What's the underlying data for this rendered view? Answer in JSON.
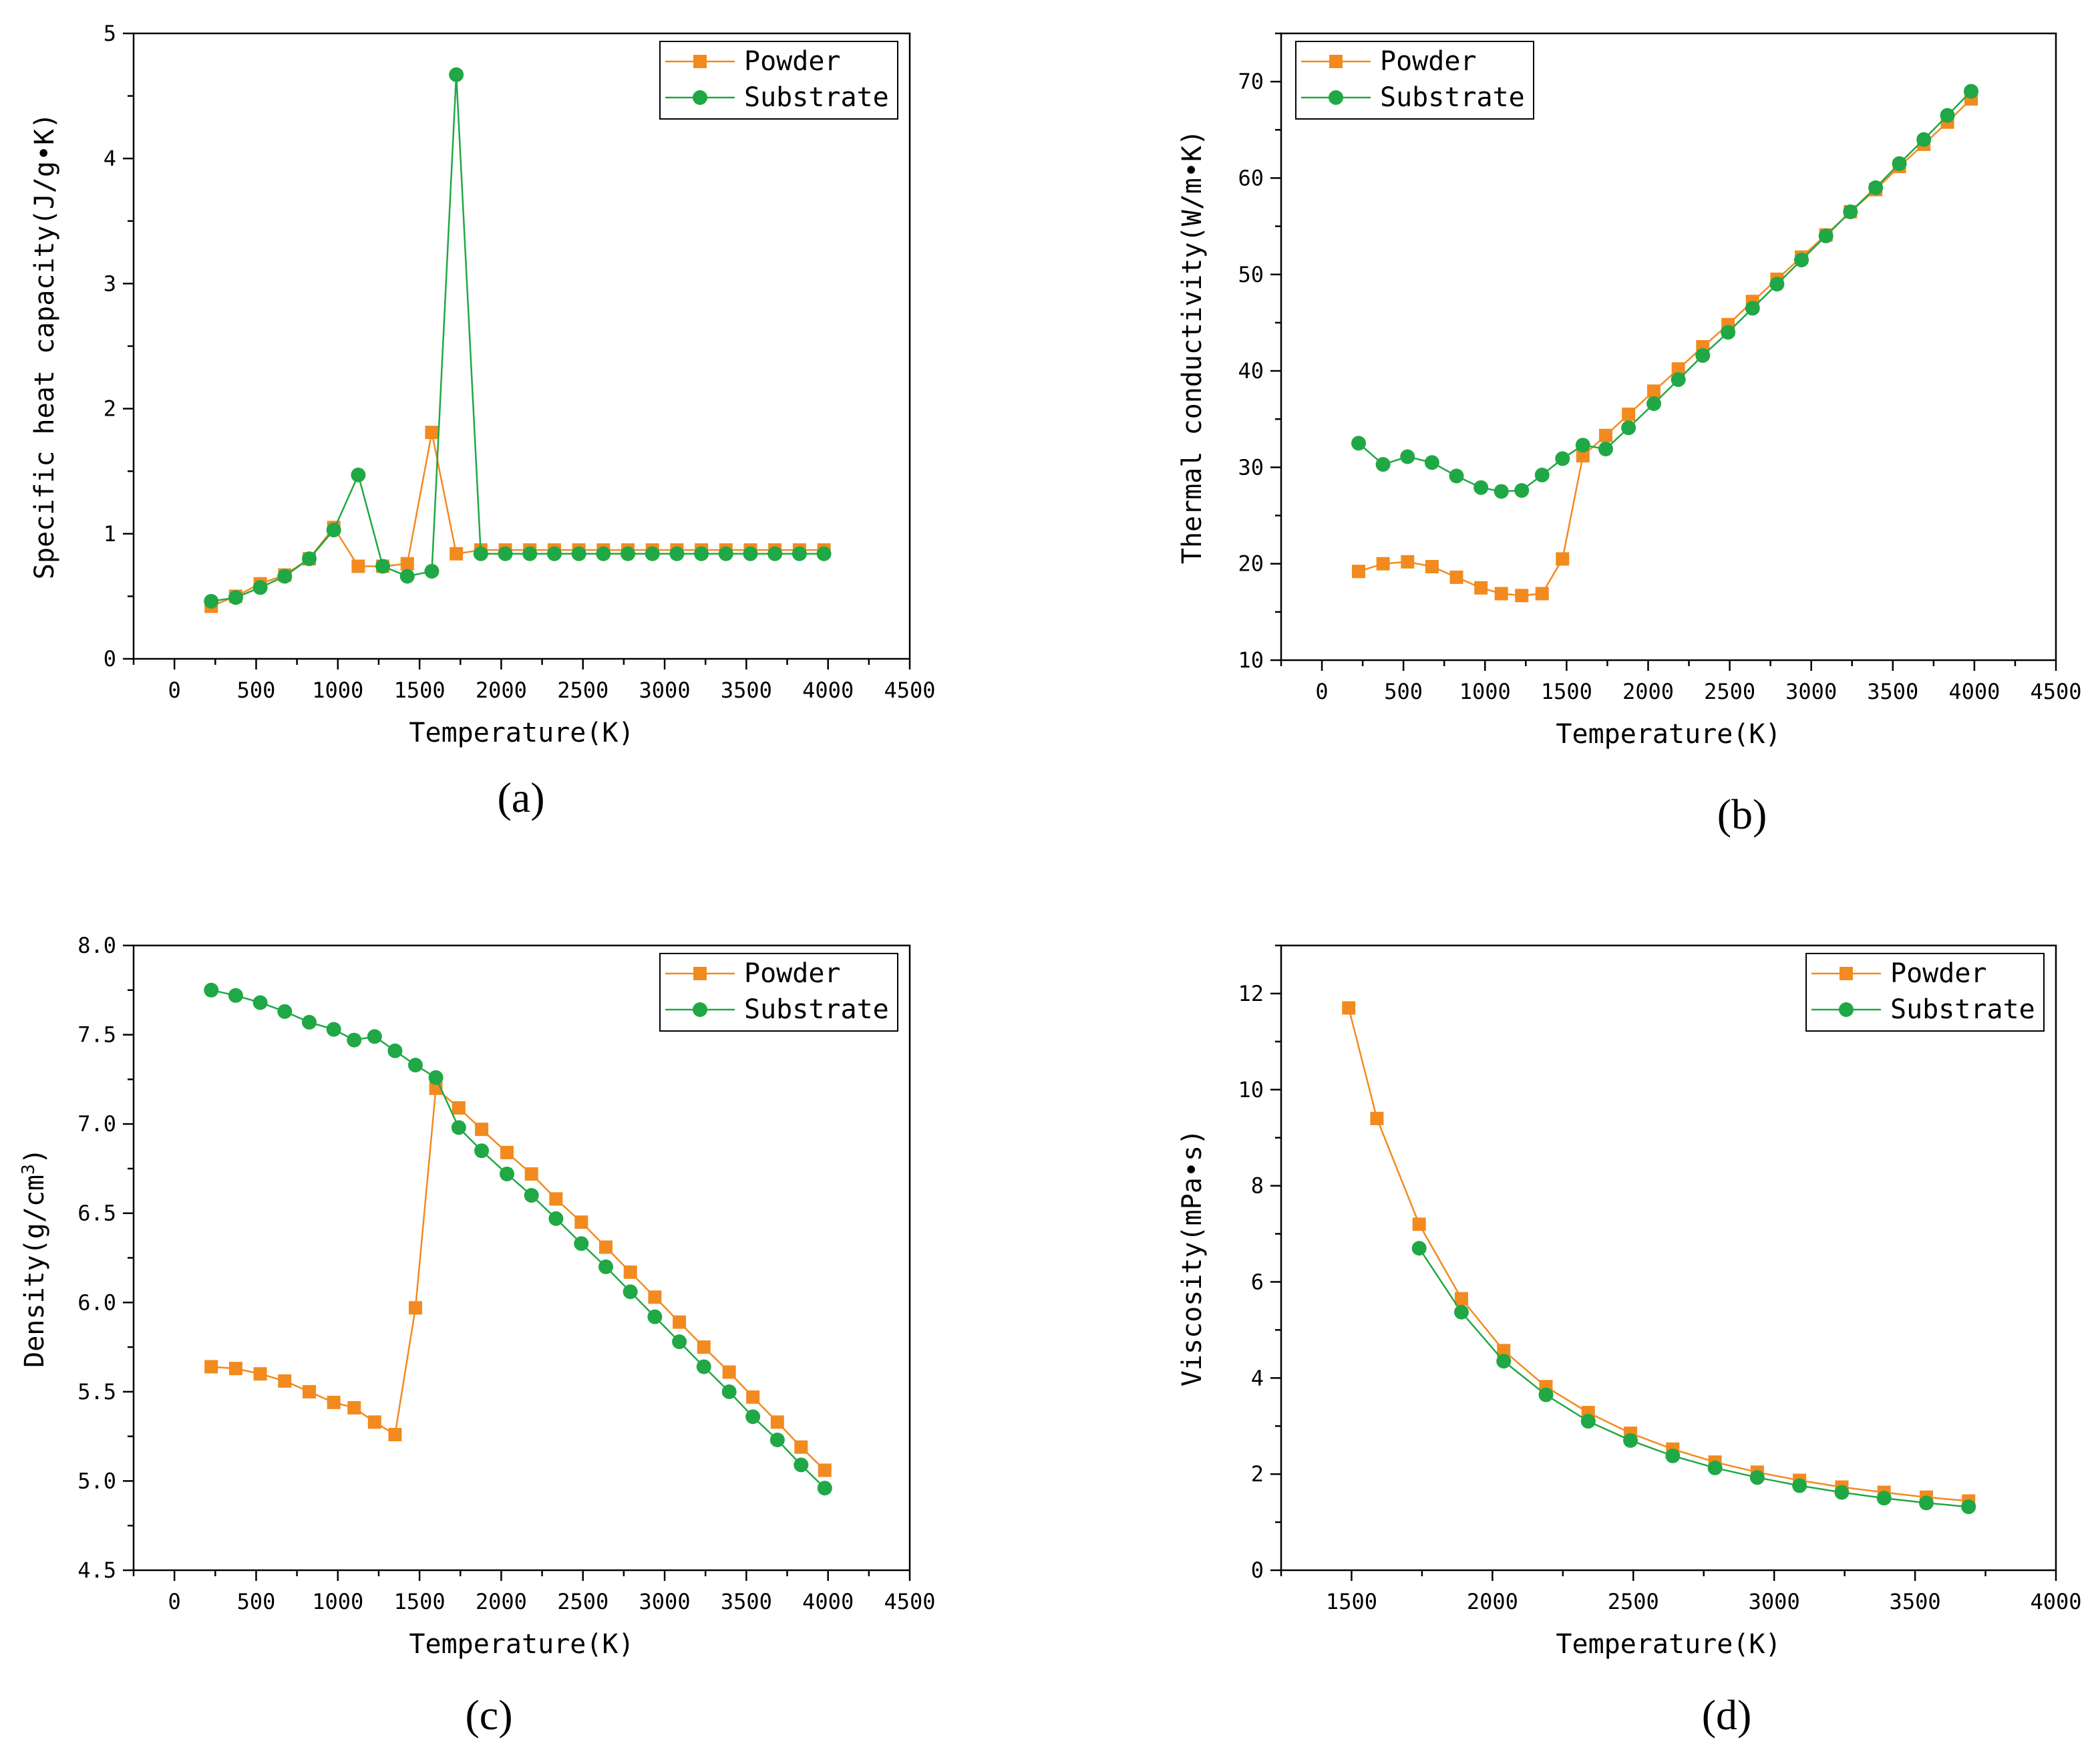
{
  "colors": {
    "powder": "#f28a1f",
    "substrate": "#1fa845",
    "axis": "#000000"
  },
  "panels": [
    {
      "caption": "(a)",
      "chart_data": {
        "type": "line",
        "title": "",
        "xlabel": "Temperature(K)",
        "ylabel": "Specific heat capacity(J/g•K)",
        "xlim": [
          -250,
          4500
        ],
        "ylim": [
          0,
          5
        ],
        "xticks": [
          0,
          500,
          1000,
          1500,
          2000,
          2500,
          3000,
          3500,
          4000,
          4500
        ],
        "xtick_labels": [
          "0",
          "500",
          "1000",
          "1500",
          "2000",
          "2500",
          "3000",
          "3500",
          "4000",
          "4500"
        ],
        "yticks": [
          0,
          1,
          2,
          3,
          4,
          5
        ],
        "ytick_labels": [
          "0",
          "1",
          "2",
          "3",
          "4",
          "5"
        ],
        "legend": "top-right",
        "series": [
          {
            "name": "Powder",
            "marker": "square",
            "x": [
              225,
              375,
              525,
              675,
              825,
              975,
              1125,
              1275,
              1425,
              1575,
              1725,
              1875,
              2025,
              2175,
              2325,
              2475,
              2625,
              2775,
              2925,
              3075,
              3225,
              3375,
              3525,
              3675,
              3825,
              3975
            ],
            "y": [
              0.42,
              0.5,
              0.6,
              0.67,
              0.8,
              1.05,
              0.74,
              0.74,
              0.76,
              1.81,
              0.84,
              0.87,
              0.87,
              0.87,
              0.87,
              0.87,
              0.87,
              0.87,
              0.87,
              0.87,
              0.87,
              0.87,
              0.87,
              0.87,
              0.87,
              0.87
            ]
          },
          {
            "name": "Substrate",
            "marker": "circle",
            "x": [
              225,
              375,
              525,
              675,
              825,
              975,
              1125,
              1275,
              1425,
              1575,
              1725,
              1875,
              2025,
              2175,
              2325,
              2475,
              2625,
              2775,
              2925,
              3075,
              3225,
              3375,
              3525,
              3675,
              3825,
              3975
            ],
            "y": [
              0.46,
              0.49,
              0.57,
              0.66,
              0.8,
              1.03,
              1.47,
              0.74,
              0.66,
              0.7,
              4.67,
              0.84,
              0.84,
              0.84,
              0.84,
              0.84,
              0.84,
              0.84,
              0.84,
              0.84,
              0.84,
              0.84,
              0.84,
              0.84,
              0.84,
              0.84
            ]
          }
        ]
      }
    },
    {
      "caption": "(b)",
      "chart_data": {
        "type": "line",
        "title": "",
        "xlabel": "Temperature(K)",
        "ylabel": "Thermal conductivity(W/m•K)",
        "xlim": [
          -250,
          4500
        ],
        "ylim": [
          10,
          75
        ],
        "xticks": [
          0,
          500,
          1000,
          1500,
          2000,
          2500,
          3000,
          3500,
          4000,
          4500
        ],
        "xtick_labels": [
          "0",
          "500",
          "1000",
          "1500",
          "2000",
          "2500",
          "3000",
          "3500",
          "4000",
          "4500"
        ],
        "yticks": [
          10,
          20,
          30,
          40,
          50,
          60,
          70
        ],
        "ytick_labels": [
          "10",
          "20",
          "30",
          "40",
          "50",
          "60",
          "70"
        ],
        "legend": "top-left",
        "series": [
          {
            "name": "Powder",
            "marker": "square",
            "x": [
              225,
              375,
              525,
              675,
              825,
              975,
              1100,
              1225,
              1350,
              1475,
              1600,
              1740,
              1880,
              2035,
              2185,
              2335,
              2490,
              2640,
              2790,
              2940,
              3090,
              3240,
              3395,
              3540,
              3690,
              3835,
              3980
            ],
            "y": [
              19.2,
              20.0,
              20.2,
              19.7,
              18.6,
              17.5,
              16.9,
              16.7,
              16.9,
              20.5,
              31.2,
              33.3,
              35.5,
              37.9,
              40.2,
              42.5,
              44.8,
              47.2,
              49.5,
              51.8,
              54.1,
              56.5,
              58.8,
              61.2,
              63.5,
              65.8,
              68.2
            ]
          },
          {
            "name": "Substrate",
            "marker": "circle",
            "x": [
              225,
              375,
              525,
              675,
              825,
              975,
              1100,
              1225,
              1350,
              1475,
              1600,
              1740,
              1880,
              2035,
              2185,
              2335,
              2490,
              2640,
              2790,
              2940,
              3090,
              3240,
              3395,
              3540,
              3690,
              3835,
              3980
            ],
            "y": [
              32.5,
              30.3,
              31.1,
              30.5,
              29.1,
              27.9,
              27.5,
              27.6,
              29.2,
              30.9,
              32.3,
              31.9,
              34.1,
              36.6,
              39.1,
              41.6,
              44.0,
              46.5,
              49.0,
              51.5,
              54.0,
              56.5,
              59.0,
              61.5,
              64.0,
              66.5,
              69.0
            ]
          }
        ]
      }
    },
    {
      "caption": "(c)",
      "chart_data": {
        "type": "line",
        "title": "",
        "xlabel": "Temperature(K)",
        "ylabel": "Density(g/cm",
        "ylabel_sup": "3",
        "ylabel_end": ")",
        "xlim": [
          -250,
          4500
        ],
        "ylim": [
          4.5,
          8.0
        ],
        "xticks": [
          0,
          500,
          1000,
          1500,
          2000,
          2500,
          3000,
          3500,
          4000,
          4500
        ],
        "xtick_labels": [
          "0",
          "500",
          "1000",
          "1500",
          "2000",
          "2500",
          "3000",
          "3500",
          "4000",
          "4500"
        ],
        "yticks": [
          4.5,
          5.0,
          5.5,
          6.0,
          6.5,
          7.0,
          7.5,
          8.0
        ],
        "ytick_labels": [
          "4.5",
          "5.0",
          "5.5",
          "6.0",
          "6.5",
          "7.0",
          "7.5",
          "8.0"
        ],
        "legend": "top-right",
        "series": [
          {
            "name": "Powder",
            "marker": "square",
            "x": [
              225,
              375,
              525,
              675,
              825,
              975,
              1100,
              1225,
              1350,
              1475,
              1600,
              1740,
              1880,
              2035,
              2185,
              2335,
              2490,
              2640,
              2790,
              2940,
              3090,
              3240,
              3395,
              3540,
              3690,
              3835,
              3980
            ],
            "y": [
              5.64,
              5.63,
              5.6,
              5.56,
              5.5,
              5.44,
              5.41,
              5.33,
              5.26,
              5.97,
              7.2,
              7.09,
              6.97,
              6.84,
              6.72,
              6.58,
              6.45,
              6.31,
              6.17,
              6.03,
              5.89,
              5.75,
              5.61,
              5.47,
              5.33,
              5.19,
              5.06
            ]
          },
          {
            "name": "Substrate",
            "marker": "circle",
            "x": [
              225,
              375,
              525,
              675,
              825,
              975,
              1100,
              1225,
              1350,
              1475,
              1600,
              1740,
              1880,
              2035,
              2185,
              2335,
              2490,
              2640,
              2790,
              2940,
              3090,
              3240,
              3395,
              3540,
              3690,
              3835,
              3980
            ],
            "y": [
              7.75,
              7.72,
              7.68,
              7.63,
              7.57,
              7.53,
              7.47,
              7.49,
              7.41,
              7.33,
              7.26,
              6.98,
              6.85,
              6.72,
              6.6,
              6.47,
              6.33,
              6.2,
              6.06,
              5.92,
              5.78,
              5.64,
              5.5,
              5.36,
              5.23,
              5.09,
              4.96
            ]
          }
        ]
      }
    },
    {
      "caption": "(d)",
      "chart_data": {
        "type": "line",
        "title": "",
        "xlabel": "Temperature(K)",
        "ylabel": "Viscosity(mPa•s)",
        "xlim": [
          1250,
          4000
        ],
        "ylim": [
          0,
          13
        ],
        "xticks": [
          1500,
          2000,
          2500,
          3000,
          3500,
          4000
        ],
        "xtick_labels": [
          "1500",
          "2000",
          "2500",
          "3000",
          "3500",
          "4000"
        ],
        "yticks": [
          0,
          2,
          4,
          6,
          8,
          10,
          12
        ],
        "ytick_labels": [
          "0",
          "2",
          "4",
          "6",
          "8",
          "10",
          "12"
        ],
        "legend": "top-right",
        "series": [
          {
            "name": "Powder",
            "marker": "square",
            "x": [
              1490,
              1590,
              1740,
              1890,
              2040,
              2190,
              2340,
              2490,
              2640,
              2790,
              2940,
              3090,
              3240,
              3390,
              3540,
              3690
            ],
            "y": [
              11.7,
              9.4,
              7.2,
              5.65,
              4.57,
              3.82,
              3.28,
              2.85,
              2.52,
              2.25,
              2.04,
              1.87,
              1.73,
              1.62,
              1.52,
              1.44
            ]
          },
          {
            "name": "Substrate",
            "marker": "circle",
            "x": [
              1740,
              1890,
              2040,
              2190,
              2340,
              2490,
              2640,
              2790,
              2940,
              3090,
              3240,
              3390,
              3540,
              3690
            ],
            "y": [
              6.7,
              5.37,
              4.35,
              3.65,
              3.1,
              2.7,
              2.38,
              2.13,
              1.93,
              1.76,
              1.62,
              1.5,
              1.4,
              1.32
            ]
          }
        ]
      }
    }
  ]
}
